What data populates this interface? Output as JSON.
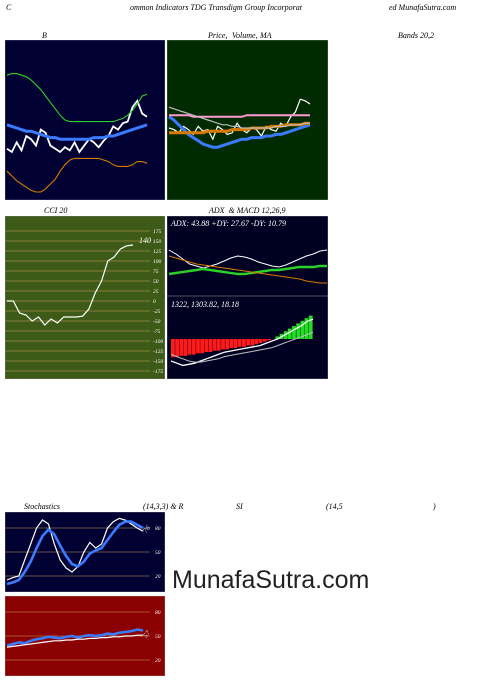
{
  "header": {
    "left": "C",
    "middle": "ommon Indicators TDG Transdigm Group Incorporat",
    "right": "ed MunafaSutra.com"
  },
  "titles": {
    "bb": "B",
    "price_a": "Price,",
    "price_b": "Volume,",
    "price_c": "MA",
    "bands": "Bands 20,2",
    "cci": "CCI 20",
    "adx": "ADX  & MACD 12,26,9",
    "stoch": "Stochastics",
    "stoch_params": "(14,3,3) & R",
    "rsi": "SI",
    "rsi_params": "(14,5",
    "rsi_close": ")"
  },
  "readouts": {
    "cci_value": "140",
    "adx_text": "ADX: 43.88  +DY: 27.67 -DY: 10.79",
    "macd_text": "1322,  1303.82,  18.18",
    "stoch_value": "76",
    "rsi_value": "57"
  },
  "watermark": "MunafaSutra.com",
  "colors": {
    "navy_bg": "#000033",
    "green_bg": "#002b00",
    "cci_bg": "#3d5a16",
    "rsi_bg": "#8b0000",
    "grid_orange": "#c9a25a",
    "blue": "#3a7bff",
    "orange": "#d87a00",
    "green": "#2bd12b",
    "pink": "#ff9ad0",
    "white": "#ffffff",
    "red": "#ff1a1a"
  },
  "chart_data": [
    {
      "type": "line",
      "name": "bollinger",
      "title": "B",
      "series": [
        {
          "color": "white",
          "values": [
            0.32,
            0.3,
            0.36,
            0.31,
            0.4,
            0.38,
            0.34,
            0.44,
            0.42,
            0.34,
            0.32,
            0.3,
            0.33,
            0.31,
            0.36,
            0.3,
            0.34,
            0.38,
            0.36,
            0.33,
            0.37,
            0.4,
            0.46,
            0.44,
            0.48,
            0.49,
            0.58,
            0.62,
            0.54,
            0.52
          ]
        },
        {
          "color": "blue",
          "values": [
            0.47,
            0.46,
            0.45,
            0.44,
            0.43,
            0.43,
            0.42,
            0.41,
            0.4,
            0.39,
            0.39,
            0.38,
            0.38,
            0.38,
            0.38,
            0.38,
            0.38,
            0.38,
            0.39,
            0.39,
            0.39,
            0.4,
            0.4,
            0.41,
            0.42,
            0.43,
            0.44,
            0.45,
            0.46,
            0.47
          ]
        },
        {
          "color": "green",
          "values": [
            0.78,
            0.79,
            0.79,
            0.78,
            0.77,
            0.75,
            0.72,
            0.69,
            0.65,
            0.61,
            0.57,
            0.53,
            0.5,
            0.49,
            0.49,
            0.49,
            0.49,
            0.49,
            0.49,
            0.49,
            0.49,
            0.49,
            0.49,
            0.5,
            0.51,
            0.53,
            0.56,
            0.6,
            0.65,
            0.66
          ]
        },
        {
          "color": "orange",
          "values": [
            0.18,
            0.15,
            0.12,
            0.1,
            0.08,
            0.06,
            0.05,
            0.05,
            0.07,
            0.1,
            0.13,
            0.18,
            0.22,
            0.25,
            0.26,
            0.26,
            0.26,
            0.26,
            0.26,
            0.26,
            0.25,
            0.24,
            0.22,
            0.21,
            0.21,
            0.21,
            0.22,
            0.24,
            0.24,
            0.23
          ]
        }
      ]
    },
    {
      "type": "line",
      "name": "price-volume-ma",
      "series": [
        {
          "color": "white",
          "values": [
            0.45,
            0.44,
            0.42,
            0.46,
            0.44,
            0.41,
            0.46,
            0.43,
            0.44,
            0.38,
            0.46,
            0.44,
            0.41,
            0.42,
            0.48,
            0.44,
            0.42,
            0.45,
            0.44,
            0.4,
            0.46,
            0.44,
            0.43,
            0.48,
            0.46,
            0.52,
            0.55,
            0.63,
            0.62,
            0.6
          ]
        },
        {
          "color": "blue",
          "values": [
            0.52,
            0.5,
            0.47,
            0.44,
            0.41,
            0.39,
            0.37,
            0.35,
            0.34,
            0.33,
            0.33,
            0.34,
            0.35,
            0.36,
            0.37,
            0.38,
            0.38,
            0.39,
            0.39,
            0.39,
            0.4,
            0.4,
            0.41,
            0.41,
            0.42,
            0.43,
            0.44,
            0.45,
            0.46,
            0.47
          ]
        },
        {
          "color": "orange",
          "values": [
            0.42,
            0.42,
            0.42,
            0.42,
            0.42,
            0.42,
            0.42,
            0.42,
            0.43,
            0.43,
            0.43,
            0.43,
            0.43,
            0.44,
            0.44,
            0.44,
            0.44,
            0.45,
            0.45,
            0.45,
            0.45,
            0.46,
            0.46,
            0.46,
            0.47,
            0.47,
            0.47,
            0.47,
            0.48,
            0.48
          ]
        },
        {
          "color": "pink",
          "values": [
            0.53,
            0.53,
            0.53,
            0.53,
            0.53,
            0.52,
            0.52,
            0.52,
            0.52,
            0.52,
            0.52,
            0.52,
            0.52,
            0.52,
            0.52,
            0.52,
            0.53,
            0.53,
            0.53,
            0.53,
            0.53,
            0.53,
            0.53,
            0.53,
            0.53,
            0.53,
            0.53,
            0.53,
            0.53,
            0.53
          ]
        },
        {
          "color": "gray",
          "values": [
            0.58,
            0.57,
            0.56,
            0.55,
            0.54,
            0.53,
            0.52,
            0.51,
            0.5,
            0.49,
            0.48,
            0.47,
            0.47,
            0.46,
            0.46,
            0.45,
            0.45,
            0.45,
            0.45,
            0.45,
            0.45,
            0.45,
            0.46,
            0.46,
            0.46,
            0.47,
            0.47,
            0.47,
            0.48,
            0.48
          ]
        }
      ]
    },
    {
      "type": "line",
      "name": "cci",
      "title": "CCI 20",
      "ticks": [
        "175",
        "150",
        "125",
        "100",
        "75",
        "50",
        "25",
        "0",
        "-25",
        "-50",
        "-75",
        "-100",
        "-125",
        "-150",
        "-175"
      ],
      "ylim": [
        -175,
        175
      ],
      "values": [
        0,
        0,
        -30,
        -35,
        -50,
        -40,
        -60,
        -45,
        -55,
        -40,
        -40,
        -40,
        -38,
        -20,
        20,
        50,
        100,
        110,
        130,
        138,
        140
      ]
    },
    {
      "type": "line",
      "name": "adx",
      "series": [
        {
          "name": "ADX",
          "color": "white",
          "values": [
            44,
            40,
            35,
            30,
            28,
            26,
            28,
            30,
            33,
            36,
            38,
            37,
            35,
            32,
            30,
            28,
            27,
            29,
            32,
            35,
            38,
            40,
            43,
            44
          ]
        },
        {
          "name": "+DY",
          "color": "green",
          "values": [
            20,
            21,
            22,
            23,
            24,
            25,
            24,
            23,
            22,
            21,
            20,
            20,
            21,
            22,
            23,
            24,
            24,
            25,
            26,
            27,
            27,
            27,
            28,
            28
          ]
        },
        {
          "name": "-DY",
          "color": "orange",
          "values": [
            38,
            36,
            34,
            32,
            30,
            29,
            28,
            27,
            26,
            25,
            24,
            23,
            22,
            21,
            20,
            19,
            18,
            17,
            16,
            15,
            13,
            12,
            11,
            11
          ]
        }
      ]
    },
    {
      "type": "bar",
      "name": "macd",
      "histogram": [
        -14,
        -14,
        -13,
        -13,
        -12,
        -12,
        -11,
        -11,
        -10,
        -10,
        -9,
        -9,
        -8,
        -8,
        -7,
        -7,
        -6,
        -6,
        -5,
        -5,
        -4,
        -3,
        -2,
        -1,
        0,
        2,
        4,
        6,
        8,
        10,
        12,
        14,
        16,
        18
      ],
      "series": [
        {
          "color": "white",
          "values": [
            -20,
            -22,
            -24,
            -23,
            -22,
            -20,
            -18,
            -16,
            -14,
            -12,
            -11,
            -10,
            -9,
            -8,
            -7,
            -6,
            -4,
            -2,
            0,
            3,
            6,
            9,
            12,
            16,
            18
          ]
        },
        {
          "color": "gray",
          "values": [
            -14,
            -16,
            -18,
            -20,
            -21,
            -21,
            -20,
            -19,
            -18,
            -16,
            -15,
            -14,
            -13,
            -12,
            -11,
            -10,
            -9,
            -8,
            -6,
            -4,
            -2,
            0,
            2,
            4,
            6
          ]
        }
      ]
    },
    {
      "type": "line",
      "name": "stochastics",
      "title": "Stochastics",
      "ticks": [
        "80",
        "50",
        "20"
      ],
      "ylim": [
        0,
        100
      ],
      "series": [
        {
          "color": "white",
          "values": [
            15,
            18,
            20,
            40,
            60,
            80,
            90,
            85,
            60,
            40,
            30,
            25,
            32,
            50,
            62,
            55,
            60,
            80,
            88,
            92,
            90,
            85,
            80,
            76
          ]
        },
        {
          "color": "blue",
          "values": [
            10,
            12,
            15,
            25,
            38,
            55,
            70,
            78,
            72,
            58,
            45,
            35,
            32,
            38,
            48,
            52,
            55,
            65,
            75,
            84,
            88,
            88,
            84,
            80
          ]
        }
      ]
    },
    {
      "type": "line",
      "name": "rsi",
      "ticks": [
        "80",
        "50",
        "20"
      ],
      "ylim": [
        0,
        100
      ],
      "series": [
        {
          "color": "blue",
          "values": [
            38,
            40,
            42,
            41,
            44,
            46,
            47,
            49,
            48,
            47,
            49,
            50,
            48,
            50,
            51,
            50,
            51,
            53,
            52,
            54,
            55,
            56,
            58,
            57
          ]
        },
        {
          "color": "white",
          "values": [
            36,
            37,
            38,
            39,
            40,
            41,
            42,
            43,
            44,
            44,
            45,
            45,
            46,
            46,
            47,
            47,
            48,
            48,
            49,
            49,
            50,
            50,
            51,
            51
          ]
        }
      ]
    }
  ]
}
